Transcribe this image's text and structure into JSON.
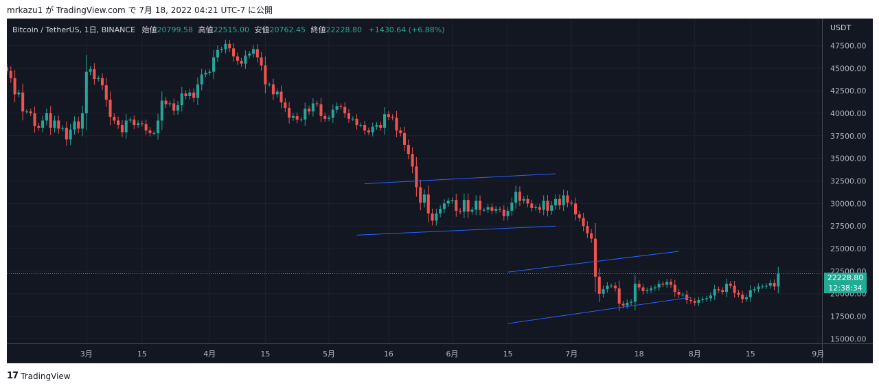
{
  "header": {
    "text": "mrkazu1 が TradingView.com で 7月 18, 2022 04:21 UTC-7 に公開"
  },
  "legend": {
    "symbol": "Bitcoin / TetherUS, 1日, BINANCE",
    "open_label": "始値",
    "open": "20799.58",
    "high_label": "高値",
    "high": "22515.00",
    "low_label": "安値",
    "low": "20762.45",
    "close_label": "終値",
    "close": "22228.80",
    "change": "+1430.64 (+6.88%)"
  },
  "axis": {
    "currency": "USDT",
    "price_tag": "22228.80",
    "countdown": "12:38:34"
  },
  "footer": {
    "brand": "TradingView",
    "logo": "17"
  },
  "colors": {
    "up": "#26a69a",
    "down": "#ef5350",
    "background": "#131722",
    "channel": "#2962ff",
    "tag": "#22ab94"
  },
  "chart_data": {
    "type": "candlestick",
    "symbol": "Bitcoin / TetherUS",
    "interval": "1日",
    "exchange": "BINANCE",
    "ylim": [
      14500,
      50500
    ],
    "yticks": [
      15000,
      17500,
      20000,
      22500,
      25000,
      27500,
      30000,
      32500,
      35000,
      37500,
      40000,
      42500,
      45000,
      47500
    ],
    "ytick_labels": [
      "15000.00",
      "17500.00",
      "20000.00",
      "22500.00",
      "25000.00",
      "27500.00",
      "30000.00",
      "32500.00",
      "35000.00",
      "37500.00",
      "40000.00",
      "42500.00",
      "45000.00",
      "47500.00"
    ],
    "x_start_date": "2022-02-09",
    "x_end_date": "2022-09-02",
    "xticks": [
      {
        "date": "2022-03-01",
        "label": "3月"
      },
      {
        "date": "2022-03-15",
        "label": "15"
      },
      {
        "date": "2022-04-01",
        "label": "4月"
      },
      {
        "date": "2022-04-15",
        "label": "15"
      },
      {
        "date": "2022-05-01",
        "label": "5月"
      },
      {
        "date": "2022-05-16",
        "label": "16"
      },
      {
        "date": "2022-06-01",
        "label": "6月"
      },
      {
        "date": "2022-06-15",
        "label": "15"
      },
      {
        "date": "2022-07-01",
        "label": "7月"
      },
      {
        "date": "2022-07-18",
        "label": "18"
      },
      {
        "date": "2022-08-01",
        "label": "8月"
      },
      {
        "date": "2022-08-15",
        "label": "15"
      },
      {
        "date": "2022-09-01",
        "label": "9月"
      }
    ],
    "last_price": 22228.8,
    "grid": true,
    "closes": [
      44700,
      43900,
      42100,
      42300,
      40200,
      40200,
      40000,
      38600,
      38400,
      39200,
      40000,
      38400,
      39200,
      38300,
      38400,
      37100,
      38200,
      39100,
      38300,
      40000,
      44600,
      44900,
      43800,
      43900,
      43100,
      41500,
      39600,
      39200,
      38700,
      37900,
      39200,
      39300,
      38700,
      38900,
      38800,
      38100,
      37800,
      37800,
      39200,
      41400,
      41000,
      41100,
      40300,
      40900,
      42200,
      41900,
      42300,
      41700,
      43200,
      44300,
      44500,
      44600,
      46200,
      47000,
      47100,
      47700,
      47200,
      46300,
      45800,
      45500,
      46400,
      46600,
      47100,
      46200,
      45300,
      43200,
      43200,
      42100,
      42400,
      41200,
      40600,
      39500,
      39700,
      39300,
      39300,
      40500,
      40200,
      41100,
      41000,
      39700,
      39400,
      39500,
      40400,
      40800,
      40700,
      40000,
      39400,
      39400,
      38700,
      38700,
      38100,
      37900,
      38500,
      38700,
      38400,
      39900,
      39600,
      39500,
      38100,
      37800,
      36500,
      35500,
      34100,
      31800,
      30100,
      31000,
      28900,
      28100,
      28900,
      29400,
      30000,
      30300,
      30400,
      29200,
      29100,
      30400,
      29100,
      29300,
      30300,
      29300,
      29300,
      29600,
      29200,
      29400,
      29300,
      28600,
      29200,
      30100,
      31300,
      30300,
      30500,
      30000,
      29500,
      29600,
      29300,
      30300,
      29200,
      29800,
      30500,
      29800,
      30900,
      30100,
      30000,
      28800,
      28400,
      27500,
      26700,
      26100,
      21900,
      20000,
      20500,
      20900,
      20900,
      20600,
      18900,
      18700,
      19000,
      19100,
      21100,
      20700,
      20300,
      20400,
      20600,
      20700,
      21100,
      21000,
      21300,
      21000,
      20200,
      19900,
      19900,
      19300,
      19200,
      19000,
      19300,
      19400,
      19500,
      19800,
      20500,
      20400,
      20200,
      21100,
      20900,
      20100,
      19900,
      19400,
      19600,
      20400,
      20500,
      20800,
      20800,
      20900,
      21200,
      20800,
      22229
    ],
    "channels": [
      {
        "upper": [
          {
            "date": "2022-05-10",
            "price": 32200
          },
          {
            "date": "2022-06-27",
            "price": 33300
          }
        ],
        "lower": [
          {
            "date": "2022-05-08",
            "price": 26500
          },
          {
            "date": "2022-06-27",
            "price": 27500
          }
        ]
      },
      {
        "upper": [
          {
            "date": "2022-06-15",
            "price": 22400
          },
          {
            "date": "2022-07-28",
            "price": 24700
          }
        ],
        "lower": [
          {
            "date": "2022-06-15",
            "price": 16700
          },
          {
            "date": "2022-07-31",
            "price": 19600
          }
        ]
      }
    ]
  }
}
